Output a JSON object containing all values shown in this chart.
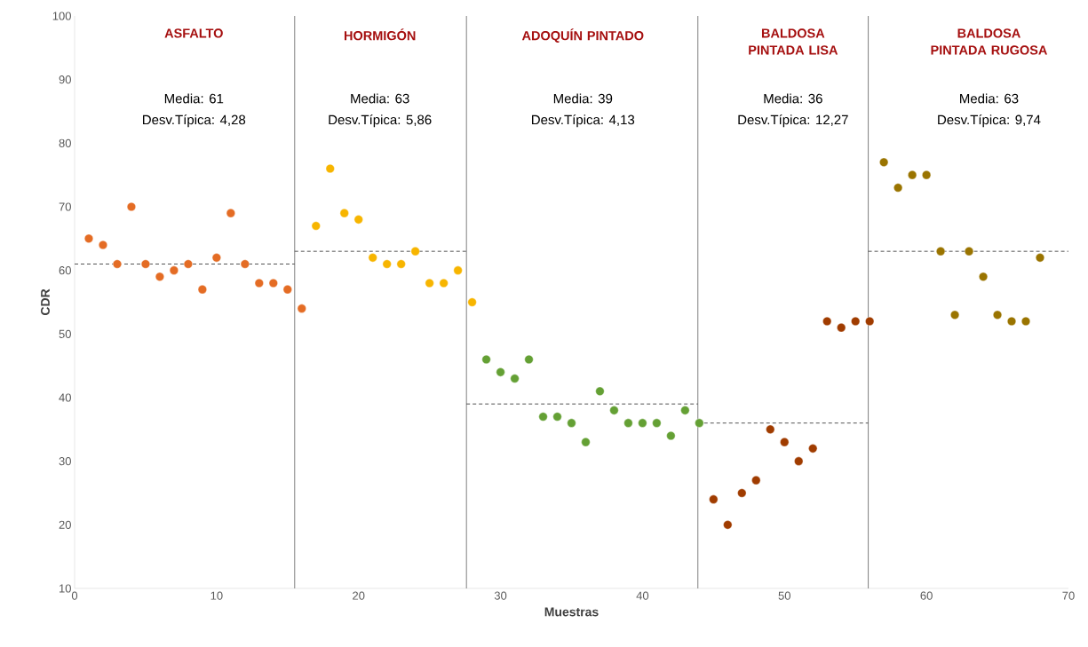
{
  "chart_data": {
    "type": "scatter",
    "xlabel": "Muestras",
    "ylabel": "CDR",
    "xlim": [
      0,
      70
    ],
    "xticks": [
      0,
      10,
      20,
      30,
      40,
      50,
      60,
      70
    ],
    "ylim": [
      10,
      100
    ],
    "yticks": [
      10,
      20,
      30,
      40,
      50,
      60,
      70,
      80,
      90,
      100
    ],
    "grid": false,
    "marker": "circle",
    "series": [
      {
        "color": "#e46c24",
        "x": [
          1,
          2,
          3,
          4,
          5,
          6,
          7,
          8,
          9,
          10,
          11,
          12,
          13,
          14,
          15,
          16
        ],
        "values": [
          65,
          64,
          61,
          70,
          61,
          59,
          60,
          61,
          57,
          62,
          69,
          61,
          58,
          58,
          57,
          54
        ]
      },
      {
        "color": "#f7b500",
        "x": [
          17,
          18,
          19,
          20,
          21,
          22,
          23,
          24,
          25,
          26,
          27,
          28
        ],
        "values": [
          67,
          76,
          69,
          68,
          62,
          61,
          61,
          63,
          58,
          58,
          60,
          55
        ]
      },
      {
        "color": "#64a034",
        "x": [
          29,
          30,
          31,
          32,
          33,
          34,
          35,
          36,
          37,
          38,
          39,
          40,
          41,
          42,
          43,
          44
        ],
        "values": [
          46,
          44,
          43,
          46,
          37,
          37,
          36,
          33,
          41,
          38,
          36,
          36,
          36,
          34,
          38,
          36
        ]
      },
      {
        "color": "#a03c00",
        "x": [
          45,
          46,
          47,
          48,
          49,
          50,
          51,
          52,
          53,
          54,
          55,
          56
        ],
        "values": [
          24,
          20,
          25,
          27,
          35,
          33,
          30,
          32,
          52,
          51,
          52,
          52
        ]
      },
      {
        "color": "#9a7400",
        "x": [
          57,
          58,
          59,
          60,
          61,
          62,
          63,
          64,
          65,
          66,
          67,
          68
        ],
        "values": [
          77,
          73,
          75,
          75,
          63,
          53,
          63,
          59,
          53,
          52,
          52,
          62
        ]
      },
      {
        "type": "line",
        "marker": "none",
        "line_style": "dashed",
        "color": "#404040",
        "x": [
          0,
          15.5
        ],
        "values": [
          61,
          61
        ]
      },
      {
        "type": "line",
        "marker": "none",
        "line_style": "dashed",
        "color": "#404040",
        "x": [
          15.5,
          27.6
        ],
        "values": [
          63,
          63
        ]
      },
      {
        "type": "line",
        "marker": "none",
        "line_style": "dashed",
        "color": "#404040",
        "x": [
          27.6,
          43.9
        ],
        "values": [
          39,
          39
        ]
      },
      {
        "type": "line",
        "marker": "none",
        "line_style": "dashed",
        "color": "#404040",
        "x": [
          43.9,
          55.9
        ],
        "values": [
          36,
          36
        ]
      },
      {
        "type": "line",
        "marker": "none",
        "line_style": "dashed",
        "color": "#404040",
        "x": [
          55.9,
          70
        ],
        "values": [
          63,
          63
        ]
      }
    ],
    "ref_lines": [
      {
        "axis": "x",
        "value": 15.5,
        "color": "#808080"
      },
      {
        "axis": "x",
        "value": 27.6,
        "color": "#808080"
      },
      {
        "axis": "x",
        "value": 43.9,
        "color": "#808080"
      },
      {
        "axis": "x",
        "value": 55.9,
        "color": "#808080"
      }
    ],
    "annotations": [
      "ASFALTO",
      "Media: 61",
      "Desv.Típica: 4,28",
      "HORMIGÓN",
      "Media: 63",
      "Desv.Típica: 5,86",
      "ADOQUÍN PINTADO",
      "Media: 39",
      "Desv.Típica: 4,13",
      "BALDOSA PINTADA LISA",
      "Media: 36",
      "Desv.Típica: 12,27",
      "BALDOSA PINTADA RUGOSA",
      "Media: 63",
      "Desv.Típica: 9,74"
    ]
  }
}
